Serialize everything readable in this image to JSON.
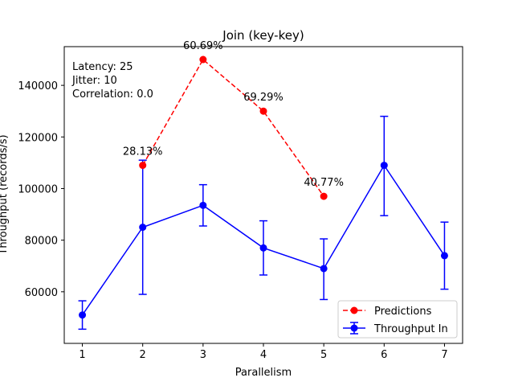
{
  "chart_data": {
    "type": "line",
    "title": "Join (key-key)",
    "xlabel": "Parallelism",
    "ylabel": "Throughput (records/s)",
    "xlim": [
      0.7,
      7.3
    ],
    "ylim": [
      40000,
      155000
    ],
    "xticks": [
      1,
      2,
      3,
      4,
      5,
      6,
      7
    ],
    "yticks": [
      60000,
      80000,
      100000,
      120000,
      140000
    ],
    "grid": false,
    "legend_position": "lower-right",
    "series": [
      {
        "name": "Throughput In",
        "color": "#0000ff",
        "style": "solid",
        "marker": "circle",
        "x": [
          1,
          2,
          3,
          4,
          5,
          6,
          7
        ],
        "y": [
          51000,
          85000,
          93500,
          77000,
          69000,
          109000,
          74000
        ],
        "error_low": [
          45500,
          59000,
          85500,
          66500,
          57000,
          89500,
          61000
        ],
        "error_high": [
          56500,
          111000,
          101500,
          87500,
          80500,
          128000,
          87000
        ]
      },
      {
        "name": "Predictions",
        "color": "#ff0000",
        "style": "dashed",
        "marker": "circle",
        "x": [
          2,
          3,
          4,
          5
        ],
        "y": [
          109000,
          150000,
          130000,
          97000
        ],
        "labels": [
          "28.13%",
          "60.69%",
          "69.29%",
          "40.77%"
        ]
      }
    ],
    "annotations": [
      "Latency: 25",
      "Jitter: 10",
      "Correlation: 0.0"
    ]
  }
}
